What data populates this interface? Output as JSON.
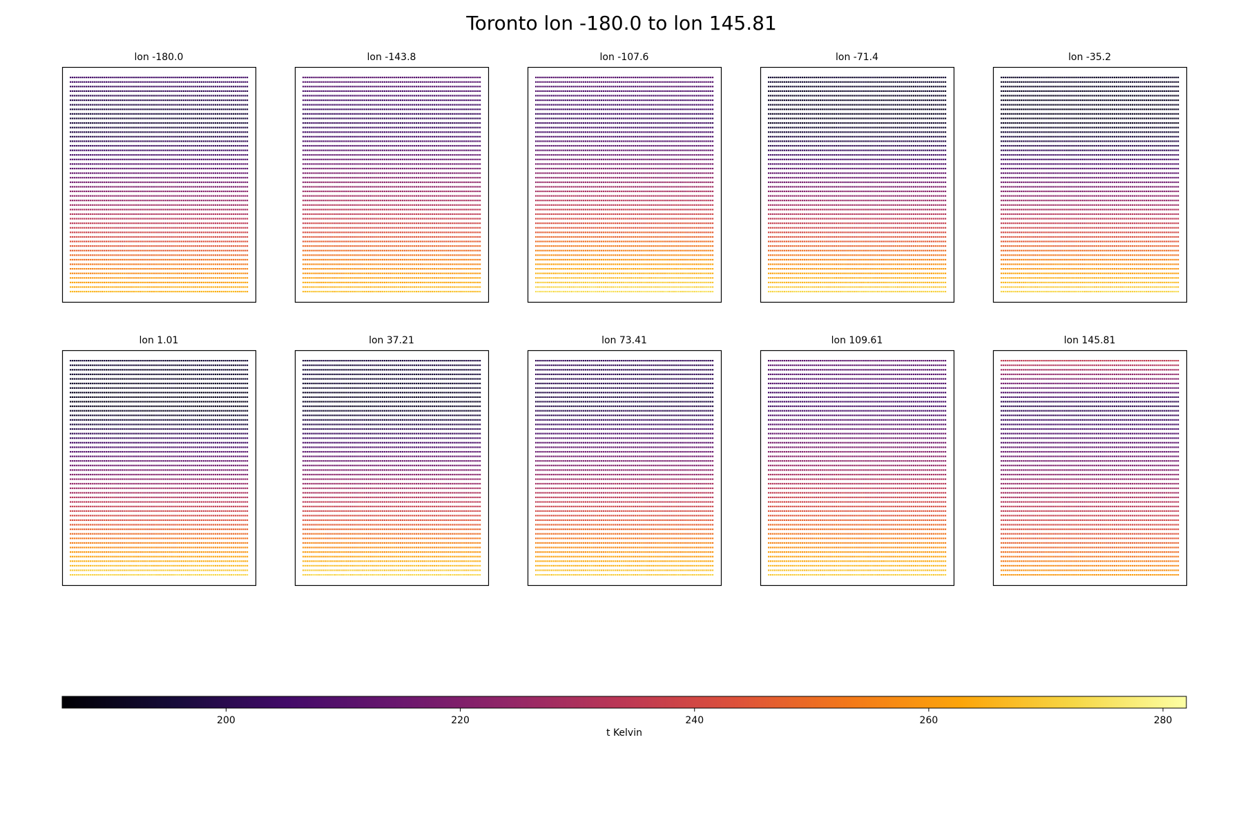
{
  "figure": {
    "title": "Toronto lon -180.0 to lon 145.81"
  },
  "chart_data": {
    "type": "scatter",
    "title": "Toronto lon -180.0 to lon 145.81",
    "colormap": "inferno",
    "colorbar": {
      "label": "t Kelvin",
      "min": 186,
      "max": 282,
      "ticks": [
        200,
        220,
        240,
        260,
        280
      ],
      "orientation": "horizontal",
      "placement": "bottom"
    },
    "rows_per_panel": 48,
    "points_per_row": 90,
    "panels": [
      {
        "title": "lon -180.0",
        "lon": -180.0,
        "temp_top": 205,
        "temp_bottom": 266,
        "cold_mid": 195
      },
      {
        "title": "lon -143.8",
        "lon": -143.8,
        "temp_top": 210,
        "temp_bottom": 268,
        "cold_mid": 202
      },
      {
        "title": "lon -107.6",
        "lon": -107.6,
        "temp_top": 210,
        "temp_bottom": 274,
        "cold_mid": 203
      },
      {
        "title": "lon -71.4",
        "lon": -71.4,
        "temp_top": 194,
        "temp_bottom": 272,
        "cold_mid": 192
      },
      {
        "title": "lon -35.2",
        "lon": -35.2,
        "temp_top": 193,
        "temp_bottom": 272,
        "cold_mid": 191
      },
      {
        "title": "lon 1.01",
        "lon": 1.01,
        "temp_top": 195,
        "temp_bottom": 272,
        "cold_mid": 190
      },
      {
        "title": "lon 37.21",
        "lon": 37.21,
        "temp_top": 197,
        "temp_bottom": 272,
        "cold_mid": 192
      },
      {
        "title": "lon 73.41",
        "lon": 73.41,
        "temp_top": 202,
        "temp_bottom": 270,
        "cold_mid": 198
      },
      {
        "title": "lon 109.61",
        "lon": 109.61,
        "temp_top": 212,
        "temp_bottom": 270,
        "cold_mid": 205
      },
      {
        "title": "lon 145.81",
        "lon": 145.81,
        "temp_top": 235,
        "temp_bottom": 260,
        "cold_mid": 200
      }
    ]
  }
}
